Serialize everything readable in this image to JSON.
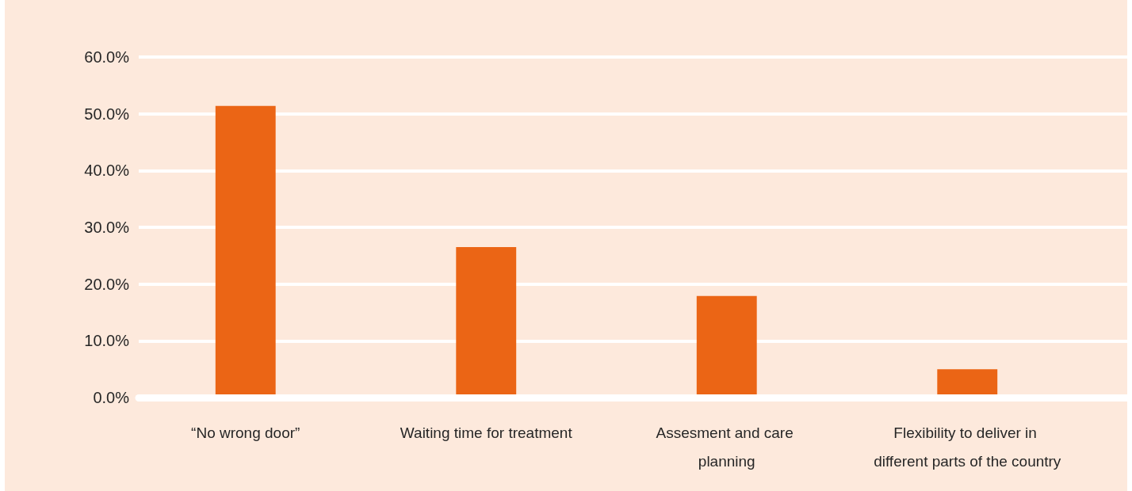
{
  "chart_data": {
    "type": "bar",
    "categories": [
      "“No wrong door”",
      "Waiting time for treatment",
      "Assesment and care planning",
      "Flexibility to deliver in different parts of the country"
    ],
    "values": [
      51.4,
      26.5,
      17.9,
      5.0
    ],
    "color": "#eb6515",
    "ylim": [
      0,
      60
    ],
    "yticks": [
      {
        "value": 0,
        "label": "0.0%"
      },
      {
        "value": 10,
        "label": "10.0%"
      },
      {
        "value": 20,
        "label": "20.0%"
      },
      {
        "value": 30,
        "label": "30.0%"
      },
      {
        "value": 40,
        "label": "40.0%"
      },
      {
        "value": 50,
        "label": "50.0%"
      },
      {
        "value": 60,
        "label": "60.0%"
      }
    ],
    "grid": "y"
  }
}
